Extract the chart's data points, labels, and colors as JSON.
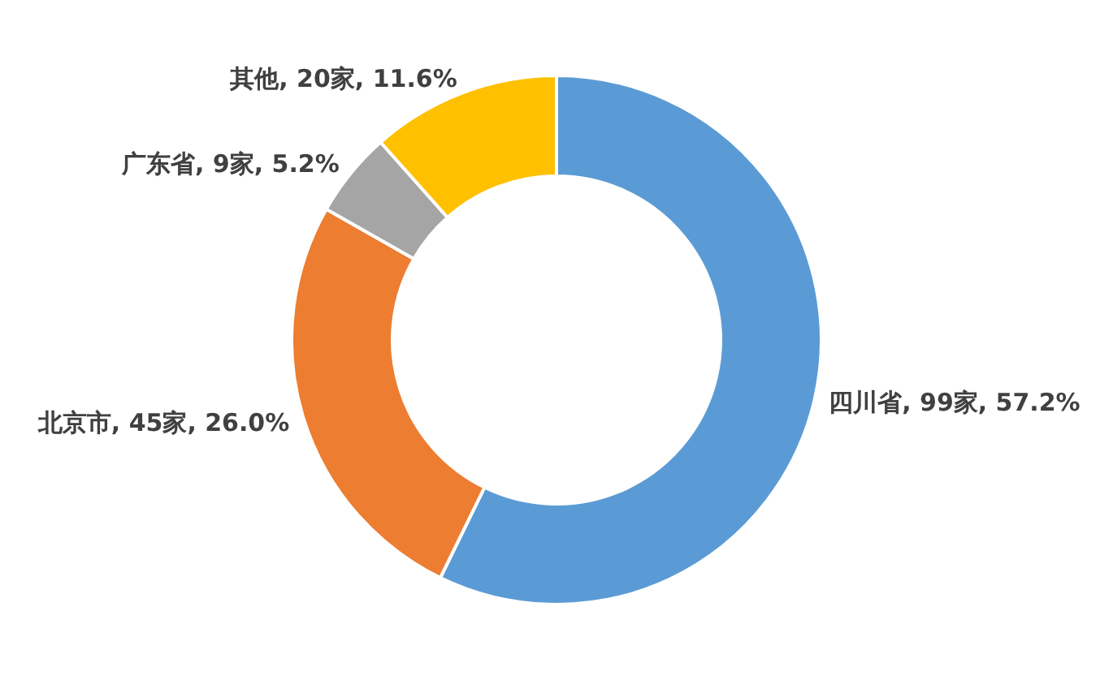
{
  "chart_data": {
    "type": "donut",
    "categories": [
      "四川省",
      "北京市",
      "广东省",
      "其他"
    ],
    "values": [
      99,
      45,
      9,
      20
    ],
    "colors": [
      "#5b9bd5",
      "#ed7d31",
      "#a5a5a5",
      "#ffc000"
    ],
    "value_labels": [
      "99家, 57.2%",
      "45家, 26.0%",
      "9家, 5.2%",
      "20家, 11.6%"
    ]
  }
}
